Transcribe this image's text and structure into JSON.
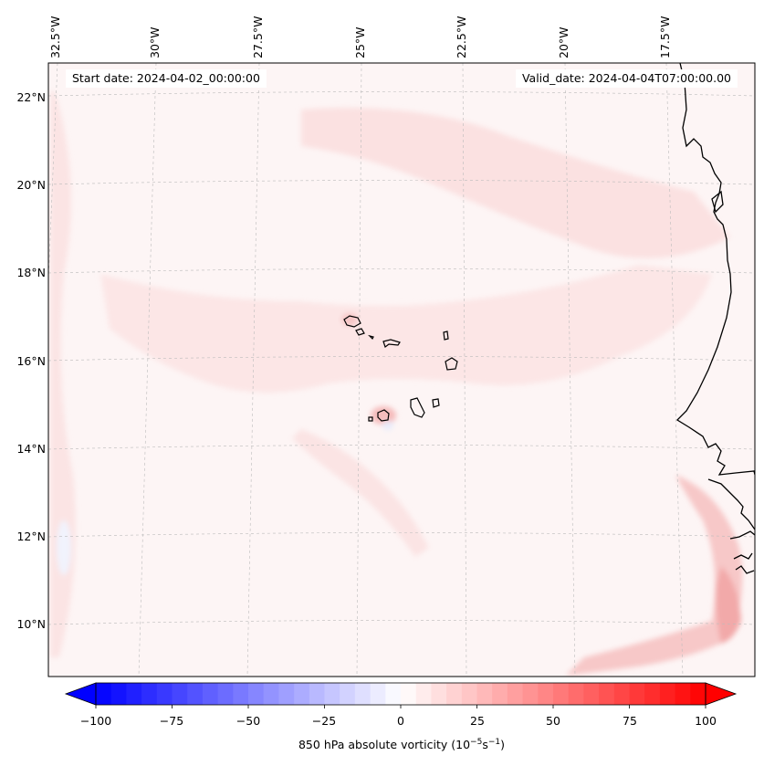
{
  "figure": {
    "start_date": "Start date: 2024-04-02_00:00:00",
    "valid_date": "Valid_date: 2024-04-04T07:00:00.00"
  },
  "map": {
    "longitude_labels": [
      "32.5°W",
      "30°W",
      "27.5°W",
      "25°W",
      "22.5°W",
      "20°W",
      "17.5°W"
    ],
    "latitude_labels": [
      "22°N",
      "20°N",
      "18°N",
      "16°N",
      "14°N",
      "12°N",
      "10°N"
    ],
    "features": [
      "Cape Verde islands",
      "West African coastline"
    ],
    "colors": {
      "coast": "#000000",
      "grid": "#bbbbbb",
      "background": "#fdf5f5"
    }
  },
  "chart_data": {
    "type": "heatmap",
    "title": "",
    "field": "850 hPa absolute vorticity",
    "units_text": "(10^-5 s^-1)",
    "colorbar": {
      "label_main": "850 hPa absolute vorticity (10",
      "label_exp1": "−5",
      "label_mid": "s",
      "label_exp2": "−1",
      "label_end": ")",
      "ticks": [
        -100,
        -75,
        -50,
        -25,
        0,
        25,
        50,
        75,
        100
      ],
      "tick_labels": [
        "−100",
        "−75",
        "−50",
        "−25",
        "0",
        "25",
        "50",
        "75",
        "100"
      ],
      "range": [
        -100,
        100
      ],
      "levels": 40,
      "extend": "both",
      "cmap": "bwr"
    },
    "lon_range": [
      -33,
      -15.5
    ],
    "lat_range": [
      9,
      22.5
    ],
    "notable_features": [
      {
        "label": "weak positive vorticity band",
        "value_approx": 5
      },
      {
        "label": "positive vorticity near West African coast",
        "value_approx": 30
      },
      {
        "label": "weak negative vorticity patches",
        "value_approx": -3
      }
    ]
  }
}
